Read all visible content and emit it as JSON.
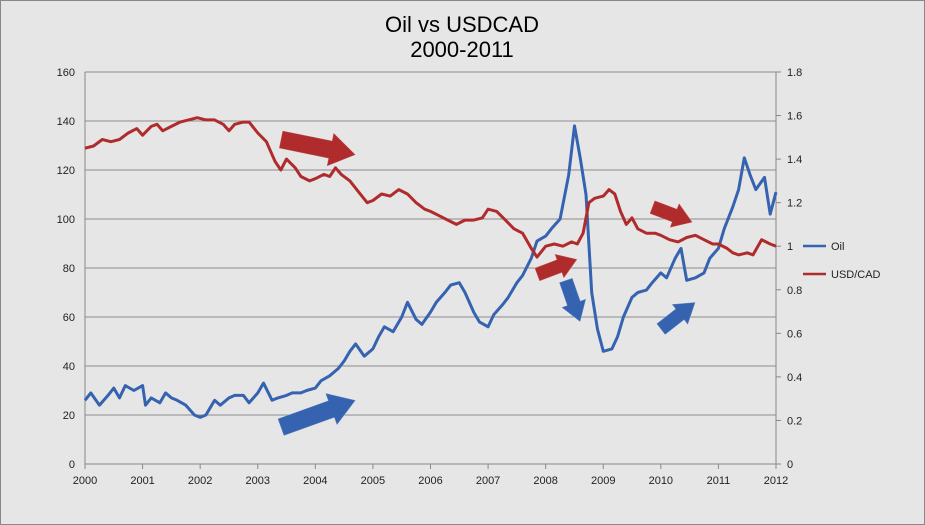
{
  "chart_data": {
    "type": "line",
    "title_lines": [
      "Oil vs USDCAD",
      "2000-2011"
    ],
    "x_ticks": [
      "2000",
      "2001",
      "2002",
      "2003",
      "2004",
      "2005",
      "2006",
      "2007",
      "2008",
      "2009",
      "2010",
      "2011",
      "2012"
    ],
    "xlim": [
      2000,
      2012
    ],
    "y_left": {
      "ylim": [
        0,
        160
      ],
      "ticks": [
        "0",
        "20",
        "40",
        "60",
        "80",
        "100",
        "120",
        "140",
        "160"
      ]
    },
    "y_right": {
      "ylim": [
        0,
        1.8
      ],
      "ticks": [
        "0",
        "0.2",
        "0.4",
        "0.6",
        "0.8",
        "1",
        "1.2",
        "1.4",
        "1.6",
        "1.8"
      ]
    },
    "grid": true,
    "legend_position": "right",
    "series": [
      {
        "name": "Oil",
        "axis": "left",
        "color": "#3563b0",
        "points": [
          [
            2000.0,
            26
          ],
          [
            2000.1,
            29
          ],
          [
            2000.25,
            24
          ],
          [
            2000.4,
            28
          ],
          [
            2000.5,
            31
          ],
          [
            2000.6,
            27
          ],
          [
            2000.7,
            32
          ],
          [
            2000.85,
            30
          ],
          [
            2001.0,
            32
          ],
          [
            2001.05,
            24
          ],
          [
            2001.15,
            27
          ],
          [
            2001.3,
            25
          ],
          [
            2001.4,
            29
          ],
          [
            2001.5,
            27
          ],
          [
            2001.6,
            26
          ],
          [
            2001.75,
            24
          ],
          [
            2001.9,
            20
          ],
          [
            2002.0,
            19
          ],
          [
            2002.1,
            20
          ],
          [
            2002.25,
            26
          ],
          [
            2002.35,
            24
          ],
          [
            2002.5,
            27
          ],
          [
            2002.6,
            28
          ],
          [
            2002.75,
            28
          ],
          [
            2002.85,
            25
          ],
          [
            2003.0,
            29
          ],
          [
            2003.1,
            33
          ],
          [
            2003.25,
            26
          ],
          [
            2003.35,
            27
          ],
          [
            2003.5,
            28
          ],
          [
            2003.6,
            29
          ],
          [
            2003.75,
            29
          ],
          [
            2003.85,
            30
          ],
          [
            2004.0,
            31
          ],
          [
            2004.1,
            34
          ],
          [
            2004.25,
            36
          ],
          [
            2004.4,
            39
          ],
          [
            2004.5,
            42
          ],
          [
            2004.6,
            46
          ],
          [
            2004.7,
            49
          ],
          [
            2004.85,
            44
          ],
          [
            2005.0,
            47
          ],
          [
            2005.1,
            52
          ],
          [
            2005.2,
            56
          ],
          [
            2005.35,
            54
          ],
          [
            2005.5,
            60
          ],
          [
            2005.6,
            66
          ],
          [
            2005.75,
            59
          ],
          [
            2005.85,
            57
          ],
          [
            2006.0,
            62
          ],
          [
            2006.1,
            66
          ],
          [
            2006.25,
            70
          ],
          [
            2006.35,
            73
          ],
          [
            2006.5,
            74
          ],
          [
            2006.6,
            70
          ],
          [
            2006.75,
            62
          ],
          [
            2006.85,
            58
          ],
          [
            2007.0,
            56
          ],
          [
            2007.1,
            61
          ],
          [
            2007.25,
            65
          ],
          [
            2007.35,
            68
          ],
          [
            2007.5,
            74
          ],
          [
            2007.6,
            77
          ],
          [
            2007.75,
            84
          ],
          [
            2007.85,
            91
          ],
          [
            2008.0,
            93
          ],
          [
            2008.1,
            96
          ],
          [
            2008.25,
            100
          ],
          [
            2008.4,
            118
          ],
          [
            2008.5,
            138
          ],
          [
            2008.6,
            125
          ],
          [
            2008.7,
            110
          ],
          [
            2008.8,
            70
          ],
          [
            2008.9,
            55
          ],
          [
            2009.0,
            46
          ],
          [
            2009.15,
            47
          ],
          [
            2009.25,
            52
          ],
          [
            2009.35,
            60
          ],
          [
            2009.5,
            68
          ],
          [
            2009.6,
            70
          ],
          [
            2009.75,
            71
          ],
          [
            2009.85,
            74
          ],
          [
            2010.0,
            78
          ],
          [
            2010.1,
            76
          ],
          [
            2010.25,
            84
          ],
          [
            2010.35,
            88
          ],
          [
            2010.45,
            75
          ],
          [
            2010.6,
            76
          ],
          [
            2010.75,
            78
          ],
          [
            2010.85,
            84
          ],
          [
            2011.0,
            88
          ],
          [
            2011.1,
            96
          ],
          [
            2011.25,
            105
          ],
          [
            2011.35,
            112
          ],
          [
            2011.45,
            125
          ],
          [
            2011.55,
            118
          ],
          [
            2011.65,
            112
          ],
          [
            2011.8,
            117
          ],
          [
            2011.9,
            102
          ],
          [
            2012.0,
            111
          ]
        ]
      },
      {
        "name": "USD/CAD",
        "axis": "right",
        "color": "#b02b2b",
        "points": [
          [
            2000.0,
            1.45
          ],
          [
            2000.15,
            1.46
          ],
          [
            2000.3,
            1.49
          ],
          [
            2000.45,
            1.48
          ],
          [
            2000.6,
            1.49
          ],
          [
            2000.75,
            1.52
          ],
          [
            2000.9,
            1.54
          ],
          [
            2001.0,
            1.51
          ],
          [
            2001.15,
            1.55
          ],
          [
            2001.25,
            1.56
          ],
          [
            2001.35,
            1.53
          ],
          [
            2001.5,
            1.55
          ],
          [
            2001.65,
            1.57
          ],
          [
            2001.8,
            1.58
          ],
          [
            2001.95,
            1.59
          ],
          [
            2002.1,
            1.58
          ],
          [
            2002.25,
            1.58
          ],
          [
            2002.4,
            1.56
          ],
          [
            2002.5,
            1.53
          ],
          [
            2002.6,
            1.56
          ],
          [
            2002.75,
            1.57
          ],
          [
            2002.85,
            1.57
          ],
          [
            2003.0,
            1.52
          ],
          [
            2003.15,
            1.48
          ],
          [
            2003.3,
            1.39
          ],
          [
            2003.4,
            1.35
          ],
          [
            2003.5,
            1.4
          ],
          [
            2003.65,
            1.36
          ],
          [
            2003.75,
            1.32
          ],
          [
            2003.9,
            1.3
          ],
          [
            2004.0,
            1.31
          ],
          [
            2004.15,
            1.33
          ],
          [
            2004.25,
            1.32
          ],
          [
            2004.35,
            1.36
          ],
          [
            2004.45,
            1.33
          ],
          [
            2004.6,
            1.3
          ],
          [
            2004.75,
            1.25
          ],
          [
            2004.9,
            1.2
          ],
          [
            2005.0,
            1.21
          ],
          [
            2005.15,
            1.24
          ],
          [
            2005.3,
            1.23
          ],
          [
            2005.45,
            1.26
          ],
          [
            2005.6,
            1.24
          ],
          [
            2005.75,
            1.2
          ],
          [
            2005.9,
            1.17
          ],
          [
            2006.0,
            1.16
          ],
          [
            2006.15,
            1.14
          ],
          [
            2006.3,
            1.12
          ],
          [
            2006.45,
            1.1
          ],
          [
            2006.6,
            1.12
          ],
          [
            2006.75,
            1.12
          ],
          [
            2006.9,
            1.13
          ],
          [
            2007.0,
            1.17
          ],
          [
            2007.15,
            1.16
          ],
          [
            2007.3,
            1.12
          ],
          [
            2007.45,
            1.08
          ],
          [
            2007.6,
            1.06
          ],
          [
            2007.75,
            0.99
          ],
          [
            2007.85,
            0.95
          ],
          [
            2008.0,
            1.0
          ],
          [
            2008.15,
            1.01
          ],
          [
            2008.3,
            1.0
          ],
          [
            2008.45,
            1.02
          ],
          [
            2008.55,
            1.01
          ],
          [
            2008.65,
            1.06
          ],
          [
            2008.75,
            1.2
          ],
          [
            2008.85,
            1.22
          ],
          [
            2009.0,
            1.23
          ],
          [
            2009.1,
            1.26
          ],
          [
            2009.2,
            1.24
          ],
          [
            2009.3,
            1.16
          ],
          [
            2009.4,
            1.1
          ],
          [
            2009.5,
            1.13
          ],
          [
            2009.6,
            1.08
          ],
          [
            2009.75,
            1.06
          ],
          [
            2009.9,
            1.06
          ],
          [
            2010.0,
            1.05
          ],
          [
            2010.15,
            1.03
          ],
          [
            2010.3,
            1.02
          ],
          [
            2010.45,
            1.04
          ],
          [
            2010.6,
            1.05
          ],
          [
            2010.75,
            1.03
          ],
          [
            2010.9,
            1.01
          ],
          [
            2011.0,
            1.01
          ],
          [
            2011.15,
            0.99
          ],
          [
            2011.25,
            0.97
          ],
          [
            2011.35,
            0.96
          ],
          [
            2011.5,
            0.97
          ],
          [
            2011.6,
            0.96
          ],
          [
            2011.75,
            1.03
          ],
          [
            2011.9,
            1.01
          ],
          [
            2012.0,
            1.0
          ]
        ]
      }
    ]
  },
  "annotations": {
    "arrows": [
      {
        "color": "#b02b2b",
        "from": [
          2003.4,
          1.49
        ],
        "to": [
          2004.7,
          1.42
        ]
      },
      {
        "color": "#3563b0",
        "from": [
          2003.4,
          15
        ],
        "to": [
          2004.7,
          26
        ]
      },
      {
        "color": "#b02b2b",
        "from": [
          2007.85,
          0.87
        ],
        "to": [
          2008.55,
          0.94
        ]
      },
      {
        "color": "#3563b0",
        "from": [
          2008.35,
          75
        ],
        "to": [
          2008.6,
          58
        ]
      },
      {
        "color": "#b02b2b",
        "from": [
          2009.85,
          1.18
        ],
        "to": [
          2010.55,
          1.11
        ]
      },
      {
        "color": "#3563b0",
        "from": [
          2010.0,
          55
        ],
        "to": [
          2010.6,
          66
        ]
      }
    ]
  }
}
